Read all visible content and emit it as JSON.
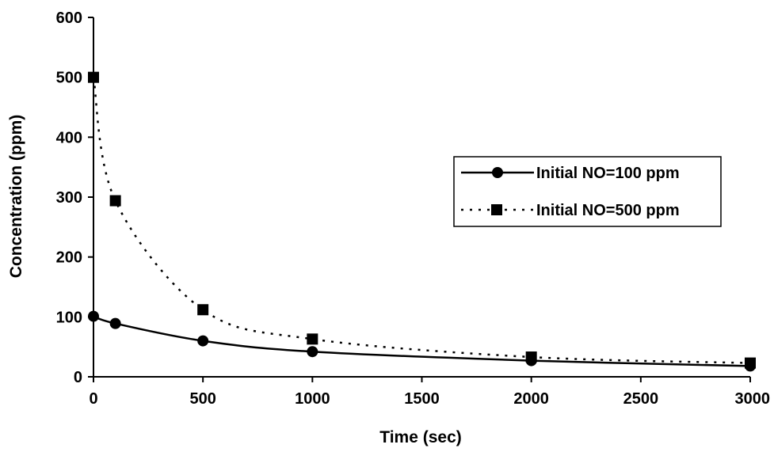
{
  "chart_data": {
    "type": "line",
    "title": "",
    "xlabel": "Time (sec)",
    "ylabel": "Concentration (ppm)",
    "xlim": [
      0,
      3000
    ],
    "ylim": [
      0,
      600
    ],
    "xticks": [
      0,
      500,
      1000,
      1500,
      2000,
      2500,
      3000
    ],
    "yticks": [
      0,
      100,
      200,
      300,
      400,
      500,
      600
    ],
    "xtick_labels": [
      "0",
      "500",
      "1000",
      "1500",
      "2000",
      "2500",
      "3000"
    ],
    "ytick_labels": [
      "0",
      "100",
      "200",
      "300",
      "400",
      "500",
      "600"
    ],
    "grid": false,
    "legend_position": "right",
    "series": [
      {
        "name": "Initial NO=100 ppm",
        "marker": "circle",
        "line_style": "solid",
        "x": [
          0,
          100,
          500,
          1000,
          2000,
          3000
        ],
        "y": [
          101,
          89,
          60,
          42,
          27,
          18
        ]
      },
      {
        "name": "Initial NO=500 ppm",
        "marker": "square",
        "line_style": "dotted",
        "x": [
          0,
          100,
          500,
          1000,
          2000,
          3000
        ],
        "y": [
          500,
          294,
          112,
          63,
          33,
          23
        ]
      }
    ]
  }
}
